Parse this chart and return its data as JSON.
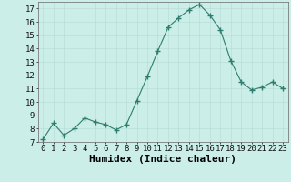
{
  "x": [
    0,
    1,
    2,
    3,
    4,
    5,
    6,
    7,
    8,
    9,
    10,
    11,
    12,
    13,
    14,
    15,
    16,
    17,
    18,
    19,
    20,
    21,
    22,
    23
  ],
  "y": [
    7.2,
    8.4,
    7.5,
    8.0,
    8.8,
    8.5,
    8.3,
    7.9,
    8.3,
    10.1,
    11.9,
    13.8,
    15.6,
    16.3,
    16.9,
    17.3,
    16.5,
    15.4,
    13.1,
    11.5,
    10.9,
    11.1,
    11.5,
    11.0
  ],
  "xlabel": "Humidex (Indice chaleur)",
  "xlim": [
    -0.5,
    23.5
  ],
  "ylim": [
    7,
    17.5
  ],
  "yticks": [
    7,
    8,
    9,
    10,
    11,
    12,
    13,
    14,
    15,
    16,
    17
  ],
  "xticks": [
    0,
    1,
    2,
    3,
    4,
    5,
    6,
    7,
    8,
    9,
    10,
    11,
    12,
    13,
    14,
    15,
    16,
    17,
    18,
    19,
    20,
    21,
    22,
    23
  ],
  "line_color": "#2e7d6e",
  "marker": "+",
  "marker_size": 4,
  "bg_color": "#cceee8",
  "grid_color": "#b8ddd8",
  "xlabel_fontsize": 8,
  "tick_fontsize": 6.5
}
